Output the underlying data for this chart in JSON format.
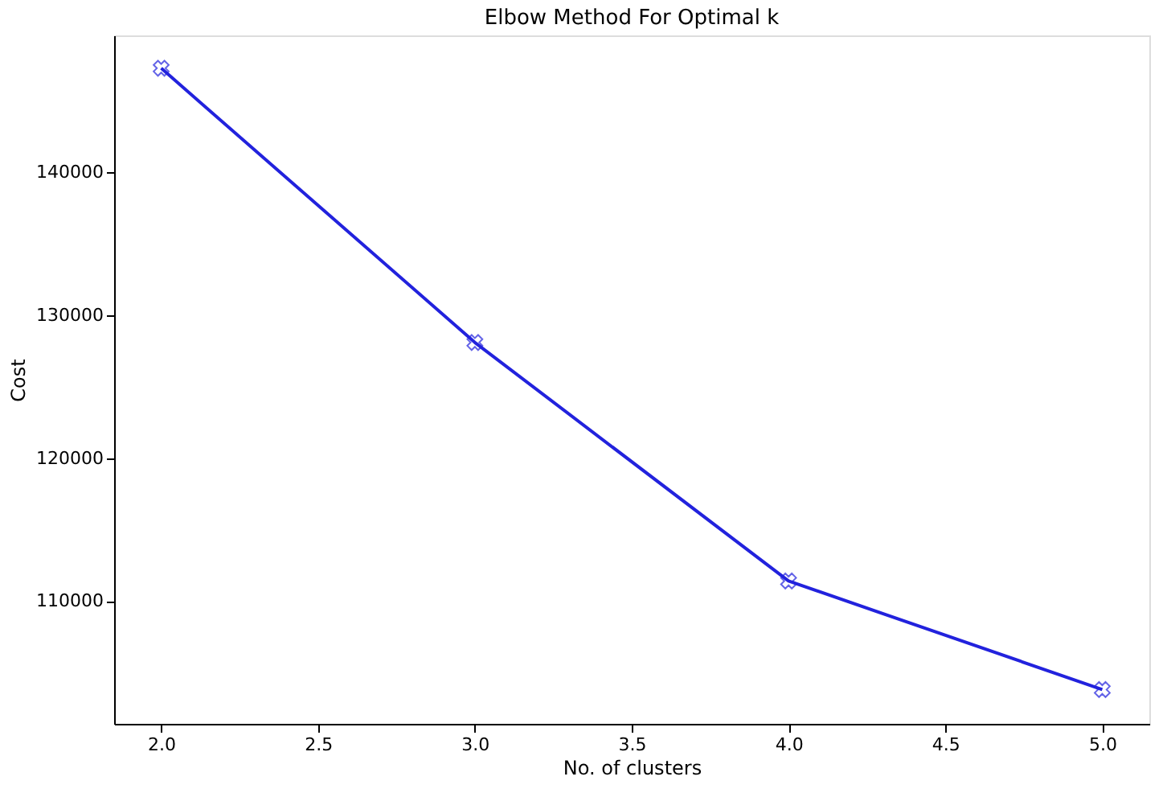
{
  "chart_data": {
    "type": "line",
    "title": "Elbow Method For Optimal k",
    "xlabel": "No. of clusters",
    "ylabel": "Cost",
    "x": [
      2,
      3,
      4,
      5
    ],
    "series": [
      {
        "color": "#2222dd",
        "values": [
          147300,
          128100,
          111400,
          103800
        ]
      }
    ],
    "xlim": [
      1.85,
      5.15
    ],
    "xticks": [
      {
        "value": 2,
        "label": "2.0"
      },
      {
        "value": 2.5,
        "label": "2.5"
      },
      {
        "value": 3,
        "label": "3.0"
      },
      {
        "value": 3.5,
        "label": "3.5"
      },
      {
        "value": 4,
        "label": "4.0"
      },
      {
        "value": 4.5,
        "label": "4.5"
      },
      {
        "value": 5,
        "label": "5.0"
      }
    ],
    "ylim": [
      101400,
      149600
    ],
    "yticks": [
      110000,
      120000,
      130000,
      140000
    ],
    "marker": "cross",
    "line_style": "solid",
    "grid": false
  }
}
